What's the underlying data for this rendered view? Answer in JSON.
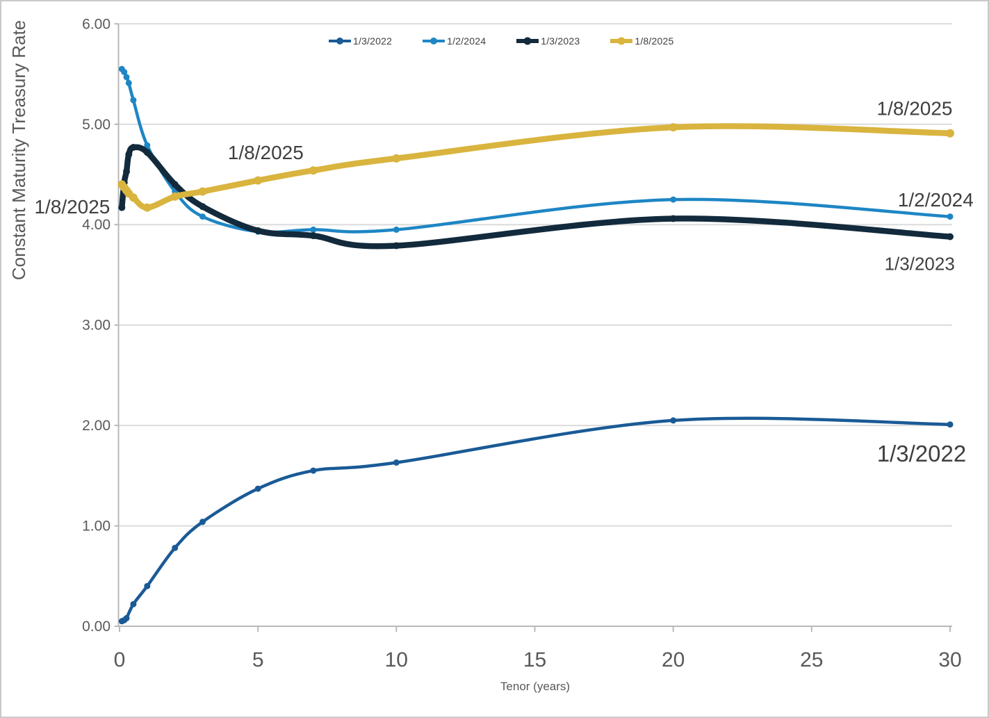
{
  "chart_data": {
    "type": "line",
    "title": "",
    "xlabel": "Tenor (years)",
    "ylabel": "Constant Maturity Treasury Rate",
    "xlim": [
      0,
      30
    ],
    "ylim": [
      0,
      6
    ],
    "x_ticks": [
      0,
      5,
      10,
      15,
      20,
      25,
      30
    ],
    "y_ticks": [
      0,
      1,
      2,
      3,
      4,
      5,
      6
    ],
    "y_tick_decimals": 2,
    "grid": "horizontal-only",
    "legend_position": "top-center",
    "colors": {
      "background": "#FFFFFF",
      "border": "#C9C9C9",
      "gridline": "#DBDBDB",
      "axis": "#B9B9B9",
      "tick_label": "#595959",
      "axis_title": "#595959",
      "annotation": "#3F3F3F"
    },
    "series": [
      {
        "name": "1/3/2022",
        "color": "#1A5A96",
        "line_width": 4.5,
        "marker_radius": 4.5,
        "tenors": [
          0.083,
          0.167,
          0.25,
          0.5,
          1,
          2,
          3,
          5,
          7,
          10,
          20,
          30
        ],
        "values": [
          0.05,
          0.06,
          0.08,
          0.22,
          0.4,
          0.78,
          1.04,
          1.37,
          1.55,
          1.63,
          2.05,
          2.01
        ]
      },
      {
        "name": "1/2/2024",
        "color": "#1E86C4",
        "line_width": 4.5,
        "marker_radius": 4.5,
        "tenors": [
          0.083,
          0.167,
          0.25,
          0.333,
          0.5,
          1,
          2,
          3,
          5,
          7,
          10,
          20,
          30
        ],
        "values": [
          5.55,
          5.52,
          5.47,
          5.41,
          5.24,
          4.79,
          4.33,
          4.08,
          3.93,
          3.95,
          3.95,
          4.25,
          4.08
        ]
      },
      {
        "name": "1/3/2023",
        "color": "#122A3C",
        "line_width": 8.5,
        "marker_radius": 5,
        "tenors": [
          0.083,
          0.167,
          0.25,
          0.333,
          0.5,
          1,
          2,
          3,
          5,
          7,
          10,
          20,
          30
        ],
        "values": [
          4.17,
          4.42,
          4.53,
          4.7,
          4.77,
          4.72,
          4.4,
          4.18,
          3.94,
          3.89,
          3.79,
          4.06,
          3.88
        ]
      },
      {
        "name": "1/8/2025",
        "color": "#D9B43E",
        "line_width": 8.5,
        "marker_radius": 6,
        "tenors": [
          0.083,
          0.167,
          0.25,
          0.333,
          0.5,
          1,
          2,
          3,
          5,
          7,
          10,
          20,
          30
        ],
        "values": [
          4.4,
          4.37,
          4.34,
          4.31,
          4.27,
          4.17,
          4.28,
          4.33,
          4.44,
          4.54,
          4.66,
          4.97,
          4.91
        ]
      }
    ],
    "annotations": [
      {
        "text": "1/8/2025",
        "x": -1.71,
        "y": 4.18,
        "size": 28
      },
      {
        "text": "1/8/2025",
        "x": 5.28,
        "y": 4.72,
        "size": 28
      },
      {
        "text": "1/8/2025",
        "x": 28.72,
        "y": 5.16,
        "size": 28
      },
      {
        "text": "1/2/2024",
        "x": 29.48,
        "y": 4.25,
        "size": 28
      },
      {
        "text": "1/3/2023",
        "x": 28.9,
        "y": 3.61,
        "size": 26
      },
      {
        "text": "1/3/2022",
        "x": 28.97,
        "y": 1.72,
        "size": 33
      }
    ]
  }
}
